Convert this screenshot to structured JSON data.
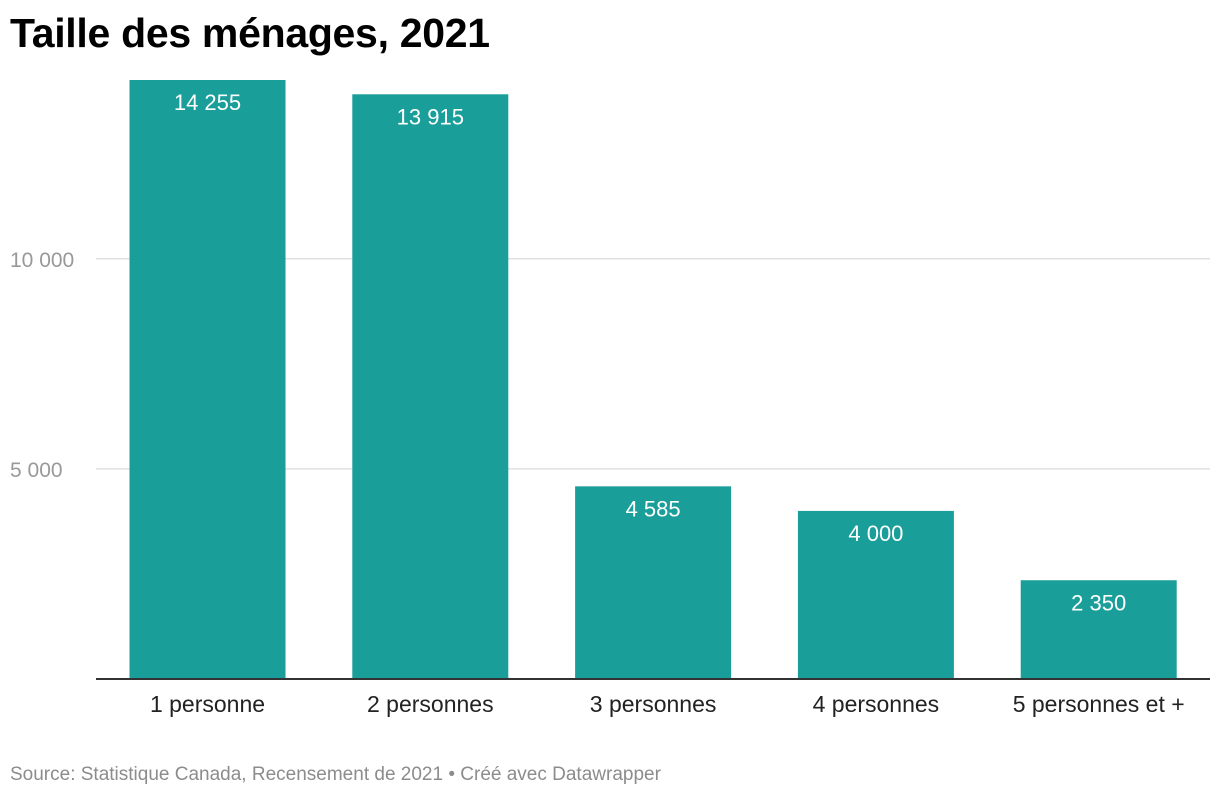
{
  "title": "Taille des ménages, 2021",
  "source": "Source: Statistique Canada, Recensement de 2021 • Créé avec Datawrapper",
  "colors": {
    "bar": "#1a9e9a",
    "grid": "#e0e0e0",
    "axis": "#333333"
  },
  "chart_data": {
    "type": "bar",
    "title": "Taille des ménages, 2021",
    "xlabel": "",
    "ylabel": "",
    "categories": [
      "1 personne",
      "2 personnes",
      "3 personnes",
      "4 personnes",
      "5 personnes et +"
    ],
    "values": [
      14255,
      13915,
      4585,
      4000,
      2350
    ],
    "value_labels": [
      "14 255",
      "13 915",
      "4 585",
      "4 000",
      "2 350"
    ],
    "yticks": [
      5000,
      10000
    ],
    "ytick_labels": [
      "5 000",
      "10 000"
    ],
    "ylim": [
      0,
      14255
    ],
    "grid": true,
    "legend": "none"
  }
}
